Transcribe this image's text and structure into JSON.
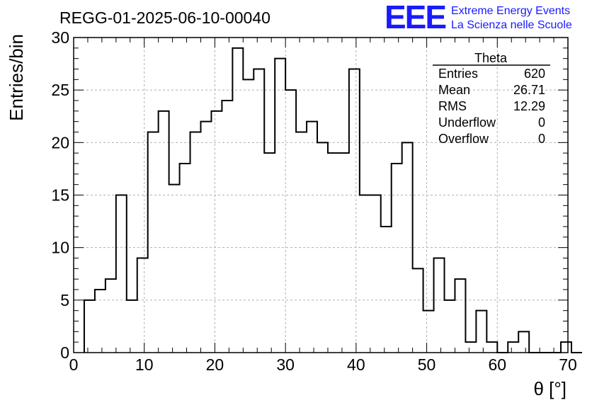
{
  "chart_data": {
    "type": "bar",
    "title": "REGG-01-2025-06-10-00040",
    "xlabel": "θ [°]",
    "ylabel": "Entries/bin",
    "xlim": [
      0,
      70
    ],
    "ylim": [
      0,
      30
    ],
    "grid": true,
    "xticks": [
      "0",
      "10",
      "20",
      "30",
      "40",
      "50",
      "60",
      "70"
    ],
    "yticks": [
      "0",
      "5",
      "10",
      "15",
      "20",
      "25",
      "30"
    ],
    "bin_width": 1.5,
    "bin_start": 1.5,
    "values": [
      5,
      6,
      7,
      15,
      5,
      9,
      21,
      23,
      16,
      18,
      21,
      22,
      23,
      24,
      29,
      26,
      27,
      19,
      28,
      25,
      21,
      22,
      20,
      19,
      19,
      27,
      15,
      15,
      12,
      18,
      20,
      8,
      4,
      9,
      5,
      7,
      1,
      4,
      1,
      0,
      1,
      2,
      0,
      0,
      0,
      1,
      0
    ],
    "stats": {
      "name": "Theta",
      "rows": [
        {
          "label": "Entries",
          "value": "620"
        },
        {
          "label": "Mean",
          "value": "26.71"
        },
        {
          "label": "RMS",
          "value": "12.29"
        },
        {
          "label": "Underflow",
          "value": "0"
        },
        {
          "label": "Overflow",
          "value": "0"
        }
      ]
    }
  },
  "logo": {
    "mark": "EEE",
    "line1": "Extreme Energy Events",
    "line2": "La Scienza nelle Scuole"
  },
  "colors": {
    "logo": "#1a1aff",
    "histogram": "#000000",
    "grid": "#b0b0b0"
  }
}
